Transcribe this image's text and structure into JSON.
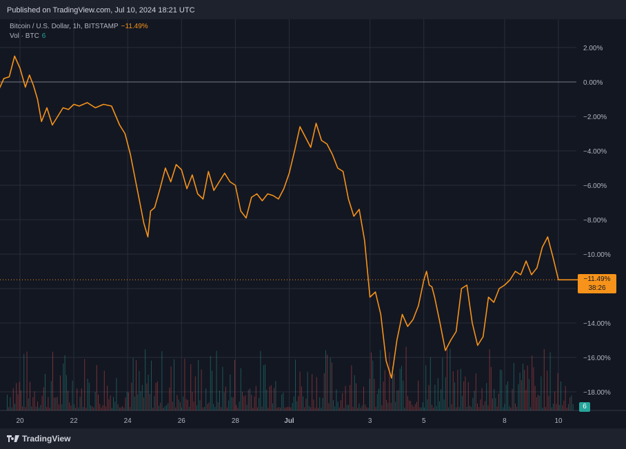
{
  "header": {
    "published": "Published on TradingView.com, Jul 10, 2024 18:21 UTC"
  },
  "legend": {
    "symbol": "Bitcoin / U.S. Dollar, 1h, BITSTAMP",
    "change": "−11.49%",
    "vol_label": "Vol · BTC",
    "vol_value": "6"
  },
  "price_tag": {
    "value": "−11.49%",
    "countdown": "38:26"
  },
  "footer": {
    "brand": "TradingView"
  },
  "colors": {
    "line": "#f7931a",
    "vol_up": "#26a69a",
    "vol_down": "#ef5350",
    "grid": "#2a2e39",
    "bg": "#131722"
  },
  "chart_data": {
    "type": "line",
    "title": "Bitcoin / U.S. Dollar, 1h, BITSTAMP",
    "y_unit": "%",
    "ylim": [
      -19,
      3
    ],
    "x_range": [
      "Jun 19",
      "Jul 10"
    ],
    "y_ticks": [
      "2.00%",
      "0.00%",
      "−2.00%",
      "−4.00%",
      "−6.00%",
      "−8.00%",
      "−10.00%",
      "−12.00%",
      "−14.00%",
      "−16.00%",
      "−18.00%"
    ],
    "y_tick_values": [
      2,
      0,
      -2,
      -4,
      -6,
      -8,
      -10,
      -12,
      -14,
      -16,
      -18
    ],
    "x_ticks": [
      "20",
      "22",
      "24",
      "26",
      "28",
      "Jul",
      "3",
      "5",
      "8",
      "10"
    ],
    "x_tick_days": [
      20,
      22,
      24,
      26,
      28,
      30,
      33,
      35,
      38,
      40
    ],
    "grid": true,
    "series": [
      {
        "x": [
          19.0,
          19.2,
          19.4,
          19.6,
          19.8,
          20.0,
          20.2,
          20.35,
          20.5,
          20.65,
          20.8,
          21.0,
          21.2,
          21.4,
          21.6,
          21.8,
          22.0,
          22.2,
          22.5,
          22.8,
          23.1,
          23.4,
          23.7,
          23.9,
          24.1,
          24.3,
          24.45,
          24.6,
          24.75,
          24.85,
          25.0,
          25.2,
          25.4,
          25.6,
          25.8,
          26.0,
          26.2,
          26.4,
          26.6,
          26.8,
          27.0,
          27.2,
          27.4,
          27.6,
          27.8,
          28.0,
          28.2,
          28.4,
          28.6,
          28.8,
          29.0,
          29.2,
          29.4,
          29.6,
          29.8,
          30.0,
          30.2,
          30.4,
          30.6,
          30.8,
          31.0,
          31.2,
          31.4,
          31.6,
          31.8,
          32.0,
          32.2,
          32.4,
          32.6,
          32.8,
          33.0,
          33.2,
          33.4,
          33.6,
          33.8,
          34.0,
          34.2,
          34.4,
          34.6,
          34.8,
          35.0,
          35.1,
          35.2,
          35.3,
          35.4,
          35.6,
          35.8,
          36.0,
          36.2,
          36.4,
          36.6,
          36.8,
          37.0,
          37.2,
          37.4,
          37.6,
          37.8,
          38.0,
          38.2,
          38.4,
          38.6,
          38.8,
          39.0,
          39.2,
          39.4,
          39.6,
          39.8,
          40.0,
          40.2,
          40.4,
          40.6,
          40.8
        ],
        "y": [
          0.0,
          -0.5,
          0.2,
          0.3,
          1.5,
          0.8,
          -0.3,
          0.4,
          -0.2,
          -1.0,
          -2.3,
          -1.5,
          -2.5,
          -2.0,
          -1.5,
          -1.6,
          -1.3,
          -1.4,
          -1.2,
          -1.5,
          -1.3,
          -1.4,
          -2.5,
          -3.0,
          -4.2,
          -5.8,
          -7.0,
          -8.2,
          -9.0,
          -7.5,
          -7.3,
          -6.2,
          -5.0,
          -5.8,
          -4.8,
          -5.1,
          -6.2,
          -5.4,
          -6.5,
          -6.8,
          -5.2,
          -6.3,
          -5.8,
          -5.3,
          -5.8,
          -6.0,
          -7.5,
          -7.9,
          -6.7,
          -6.5,
          -6.9,
          -6.5,
          -6.6,
          -6.8,
          -6.2,
          -5.3,
          -4.0,
          -2.6,
          -3.2,
          -3.8,
          -2.4,
          -3.4,
          -3.6,
          -4.2,
          -5.0,
          -5.2,
          -6.8,
          -7.8,
          -7.4,
          -9.2,
          -12.5,
          -12.2,
          -13.5,
          -16.2,
          -17.2,
          -15.0,
          -13.5,
          -14.2,
          -13.8,
          -13.0,
          -11.5,
          -11.0,
          -11.8,
          -11.9,
          -12.5,
          -14.0,
          -15.6,
          -15.0,
          -14.5,
          -12.0,
          -11.8,
          -14.0,
          -15.3,
          -14.8,
          -12.5,
          -12.8,
          -12.0,
          -11.8,
          -11.5,
          -11.0,
          -11.2,
          -10.4,
          -11.2,
          -10.8,
          -9.6,
          -9.0,
          -10.2,
          -11.49,
          -11.49,
          -11.49,
          -11.49,
          -11.49
        ]
      }
    ]
  }
}
